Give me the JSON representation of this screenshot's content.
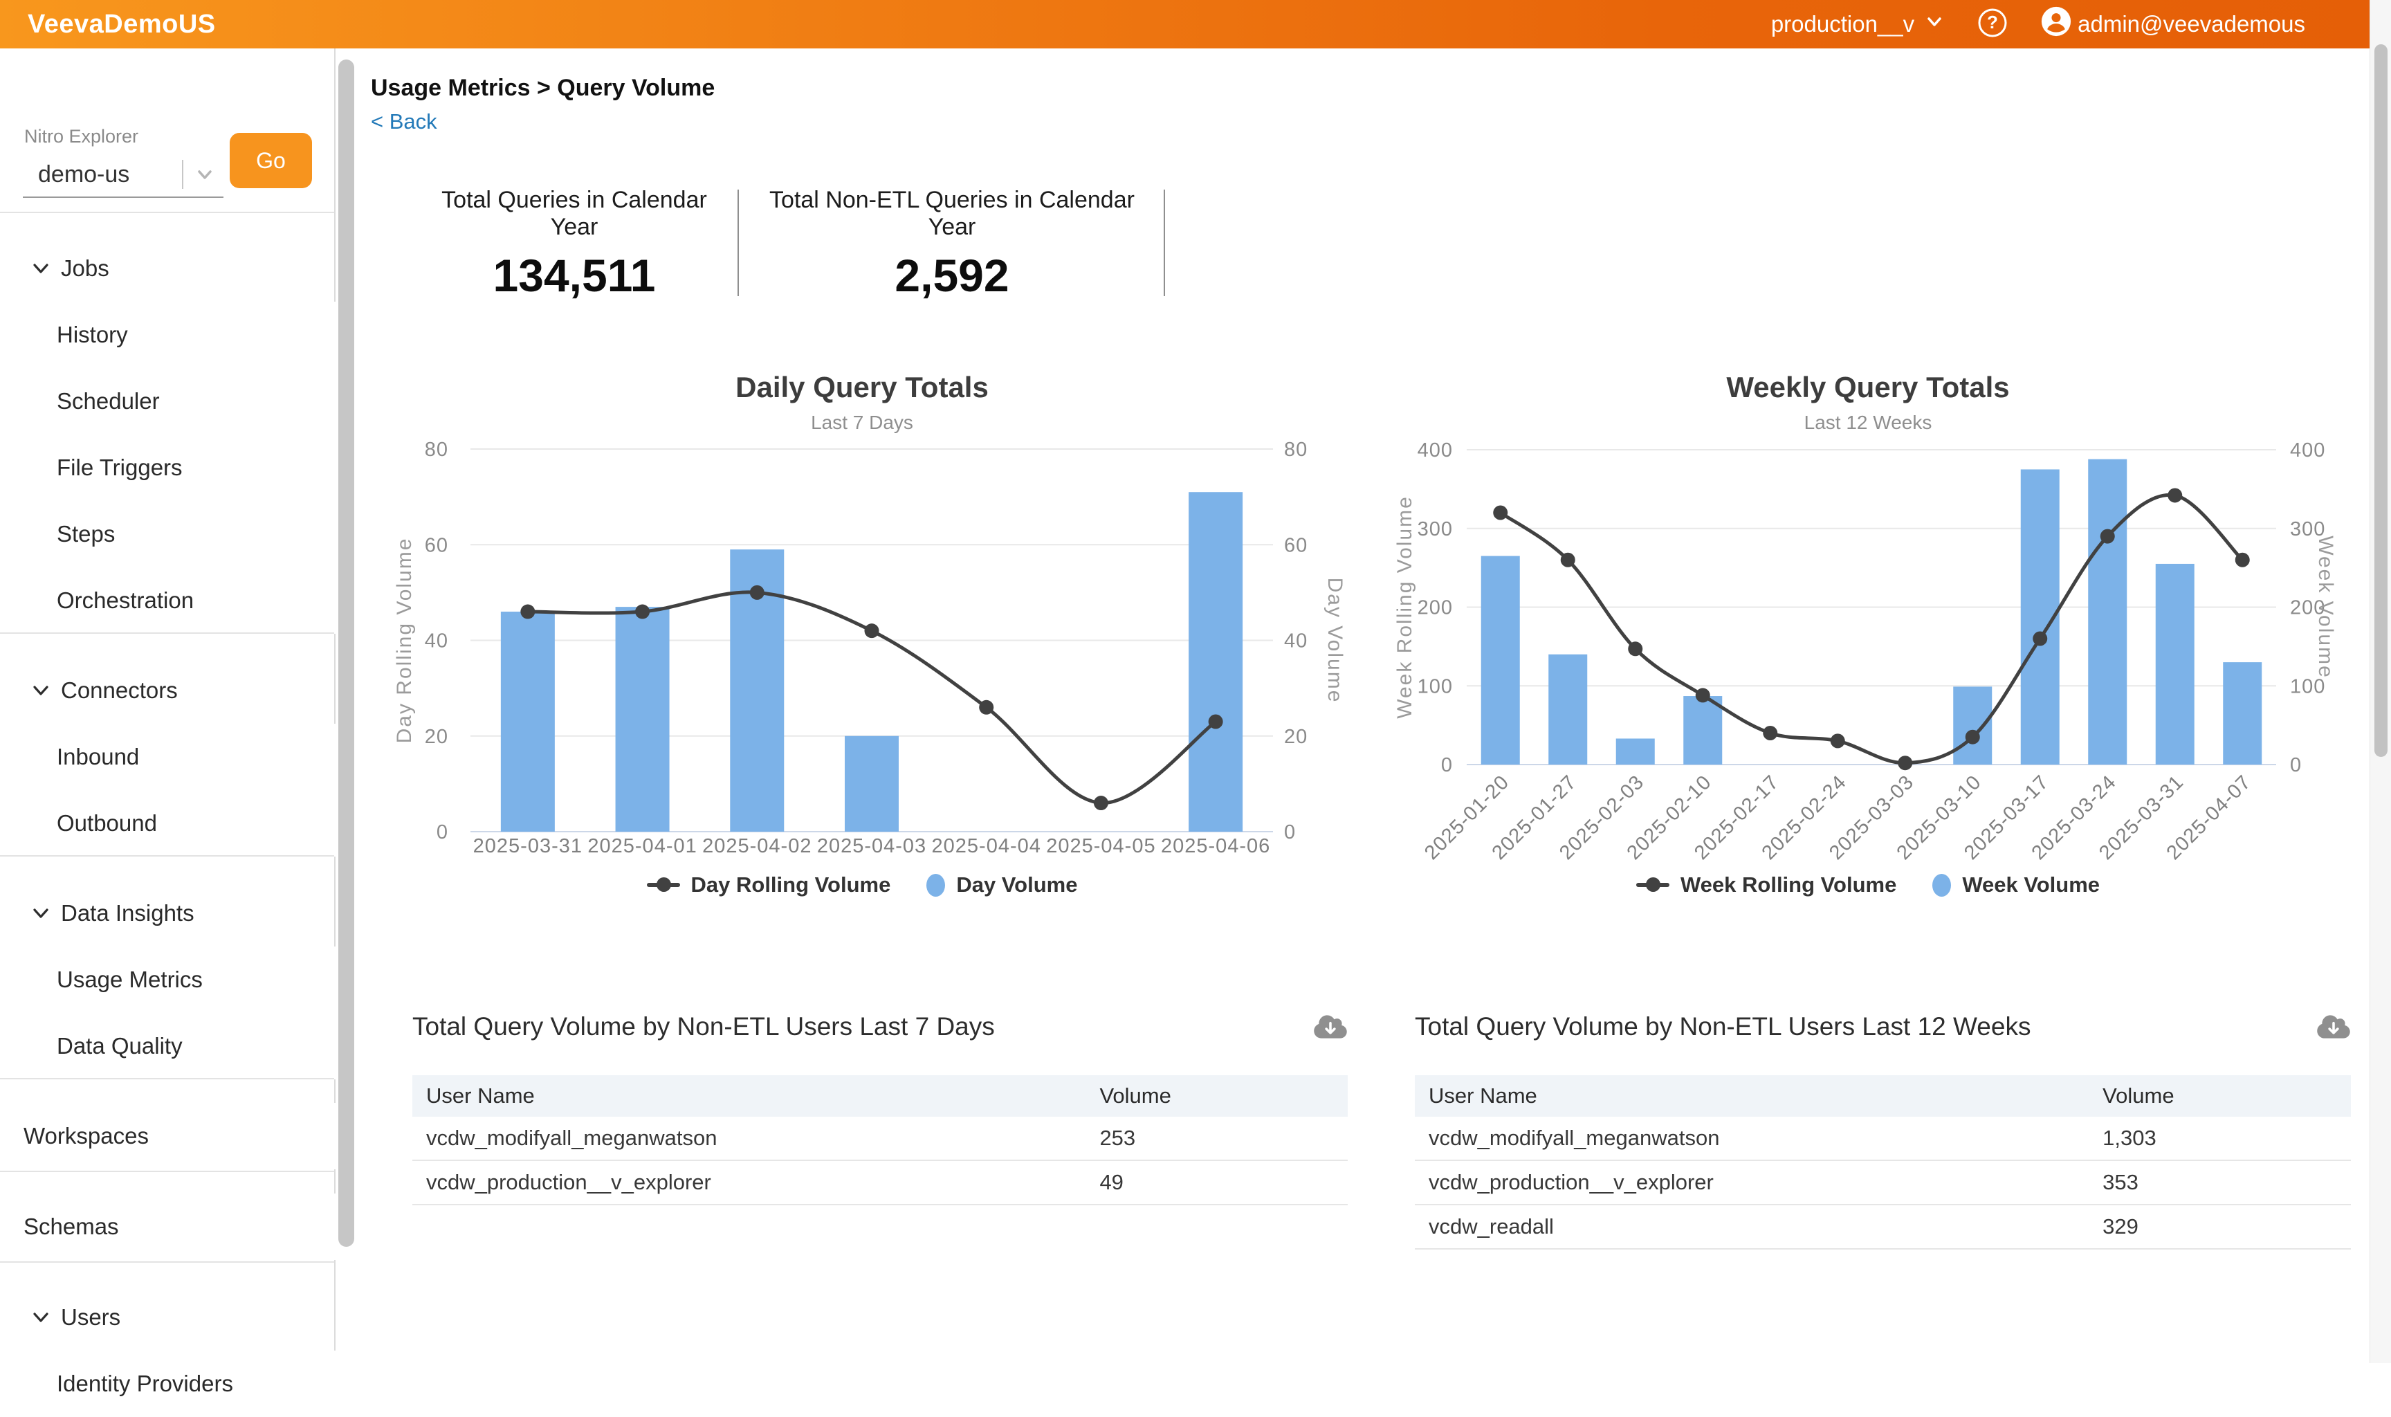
{
  "header": {
    "app_title": "VeevaDemoUS",
    "environment": "production__v",
    "user_email": "admin@veevademous"
  },
  "sidebar": {
    "explorer_label": "Nitro Explorer",
    "explorer_value": "demo-us",
    "go_label": "Go",
    "groups": [
      {
        "label": "Jobs",
        "expandable": true,
        "children": [
          "History",
          "Scheduler",
          "File Triggers",
          "Steps",
          "Orchestration"
        ]
      },
      {
        "label": "Connectors",
        "expandable": true,
        "children": [
          "Inbound",
          "Outbound"
        ]
      },
      {
        "label": "Data Insights",
        "expandable": true,
        "children": [
          "Usage Metrics",
          "Data Quality"
        ]
      },
      {
        "label": "Workspaces",
        "expandable": false,
        "children": []
      },
      {
        "label": "Schemas",
        "expandable": false,
        "children": []
      },
      {
        "label": "Users",
        "expandable": true,
        "children": [
          "Identity Providers"
        ]
      }
    ]
  },
  "main": {
    "breadcrumb": "Usage Metrics > Query Volume",
    "back_link": "< Back",
    "stats": [
      {
        "label": "Total Queries in Calendar Year",
        "value": "134,511"
      },
      {
        "label": "Total Non-ETL Queries in Calendar Year",
        "value": "2,592"
      }
    ]
  },
  "chart_data": [
    {
      "type": "bar+line dual-axis",
      "title": "Daily Query Totals",
      "subtitle": "Last 7 Days",
      "categories": [
        "2025-03-31",
        "2025-04-01",
        "2025-04-02",
        "2025-04-03",
        "2025-04-04",
        "2025-04-05",
        "2025-04-06"
      ],
      "series": [
        {
          "name": "Day Rolling Volume",
          "type": "line",
          "axis": "left",
          "values": [
            46,
            46,
            50,
            42,
            26,
            6,
            23
          ]
        },
        {
          "name": "Day Volume",
          "type": "bar",
          "axis": "right",
          "values": [
            46,
            47,
            59,
            20,
            0,
            0,
            71
          ]
        }
      ],
      "ylabel_left": "Day Rolling Volume",
      "ylabel_right": "Day Volume",
      "ylim": [
        0,
        80
      ],
      "yticks": [
        0,
        20,
        40,
        60,
        80
      ],
      "grid": true,
      "legend": [
        "Day Rolling Volume",
        "Day Volume"
      ],
      "legend_position": "bottom",
      "xlabel_rotated": false
    },
    {
      "type": "bar+line dual-axis",
      "title": "Weekly Query Totals",
      "subtitle": "Last 12 Weeks",
      "categories": [
        "2025-01-20",
        "2025-01-27",
        "2025-02-03",
        "2025-02-10",
        "2025-02-17",
        "2025-02-24",
        "2025-03-03",
        "2025-03-10",
        "2025-03-17",
        "2025-03-24",
        "2025-03-31",
        "2025-04-07"
      ],
      "series": [
        {
          "name": "Week Rolling Volume",
          "type": "line",
          "axis": "left",
          "values": [
            320,
            260,
            147,
            88,
            40,
            30,
            2,
            35,
            160,
            290,
            342,
            260
          ]
        },
        {
          "name": "Week Volume",
          "type": "bar",
          "axis": "right",
          "values": [
            265,
            140,
            33,
            87,
            0,
            0,
            0,
            99,
            375,
            388,
            255,
            130
          ]
        }
      ],
      "ylabel_left": "Week Rolling Volume",
      "ylabel_right": "Week Volume",
      "ylim": [
        0,
        400
      ],
      "yticks": [
        0,
        100,
        200,
        300,
        400
      ],
      "grid": true,
      "legend": [
        "Week Rolling Volume",
        "Week Volume"
      ],
      "legend_position": "bottom",
      "xlabel_rotated": true
    }
  ],
  "tables": [
    {
      "title": "Total Query Volume by Non-ETL Users Last 7 Days",
      "columns": [
        "User Name",
        "Volume"
      ],
      "rows": [
        [
          "vcdw_modifyall_meganwatson",
          "253"
        ],
        [
          "vcdw_production__v_explorer",
          "49"
        ]
      ]
    },
    {
      "title": "Total Query Volume by Non-ETL Users Last 12 Weeks",
      "columns": [
        "User Name",
        "Volume"
      ],
      "rows": [
        [
          "vcdw_modifyall_meganwatson",
          "1,303"
        ],
        [
          "vcdw_production__v_explorer",
          "353"
        ],
        [
          "vcdw_readall",
          "329"
        ]
      ]
    }
  ],
  "icons": {
    "help": "help-icon",
    "user": "user-avatar-icon",
    "env_chevron": "chevron-down-icon",
    "select_chevron": "chevron-down-icon",
    "nav_chevron": "chevron-down-icon",
    "download": "cloud-download-icon"
  },
  "colors": {
    "header_gradient_start": "#f8971d",
    "header_gradient_end": "#e55f07",
    "accent_orange": "#f7941e",
    "link_blue": "#2279b8",
    "bar_blue": "#7cb2e8",
    "line_dark": "#414141",
    "table_header_bg": "#f0f4f8",
    "axis_text": "#8a8a8a",
    "gridline": "#e8e8e8"
  }
}
